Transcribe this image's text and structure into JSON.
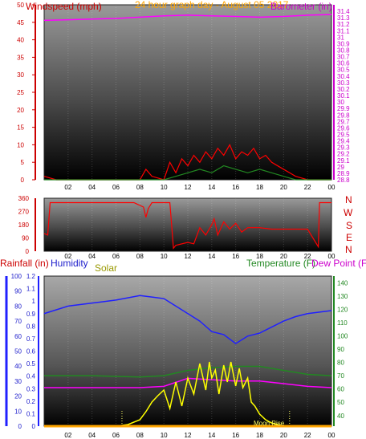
{
  "chart_data": [
    {
      "type": "line",
      "title": "24 hour graph day - August 05 2017",
      "ylabel": "Windspeed (mph)",
      "y2label": "Barometer (in)",
      "ylim": [
        0,
        50
      ],
      "y2lim": [
        28.8,
        31.5
      ],
      "yticks": [
        "0",
        "5",
        "10",
        "15",
        "20",
        "25",
        "30",
        "35",
        "40",
        "45",
        "50"
      ],
      "y2ticks": [
        "28.8",
        "28.9",
        "29",
        "29.1",
        "29.2",
        "29.3",
        "29.4",
        "29.5",
        "29.6",
        "29.7",
        "29.8",
        "29.9",
        "30",
        "30.1",
        "30.2",
        "30.3",
        "30.4",
        "30.5",
        "30.6",
        "30.7",
        "30.8",
        "30.9",
        "31",
        "31.1",
        "31.2",
        "31.3",
        "31.4"
      ],
      "xticks": [
        "02",
        "04",
        "06",
        "08",
        "10",
        "12",
        "14",
        "16",
        "18",
        "20",
        "22",
        "00"
      ],
      "series": [
        {
          "name": "Windspeed (mph)",
          "color": "#ff0000",
          "axis": "left",
          "x": [
            0,
            1,
            2,
            3,
            4,
            5,
            6,
            7,
            8,
            8.5,
            9,
            10,
            10.5,
            11,
            11.5,
            12,
            12.5,
            13,
            13.5,
            14,
            14.5,
            15,
            15.5,
            16,
            16.5,
            17,
            17.5,
            18,
            18.5,
            19,
            19.5,
            20,
            20.5,
            21,
            22,
            23,
            24
          ],
          "y": [
            1,
            0,
            0,
            0,
            0,
            0,
            0,
            0,
            0,
            3,
            1,
            0,
            5,
            2,
            6,
            4,
            7,
            5,
            8,
            6,
            9,
            7,
            10,
            6,
            8,
            7,
            9,
            6,
            7,
            5,
            4,
            3,
            2,
            1,
            0,
            0,
            0
          ]
        },
        {
          "name": "Wind Gust",
          "color": "#228822",
          "axis": "left",
          "x": [
            0,
            10,
            11,
            12,
            13,
            14,
            15,
            16,
            17,
            18,
            19,
            20,
            21,
            24
          ],
          "y": [
            0,
            0,
            1,
            2,
            3,
            2,
            4,
            3,
            2,
            3,
            2,
            1,
            0,
            0
          ]
        },
        {
          "name": "Barometer (in)",
          "color": "#ff00ff",
          "axis": "right",
          "x": [
            0,
            2,
            4,
            6,
            8,
            10,
            12,
            14,
            16,
            18,
            20,
            22,
            24
          ],
          "y": [
            31.26,
            31.27,
            31.28,
            31.29,
            31.31,
            31.33,
            31.34,
            31.33,
            31.32,
            31.31,
            31.32,
            31.34,
            31.35
          ]
        }
      ]
    },
    {
      "type": "line",
      "ylabel": "Wind Direction",
      "ylim": [
        0,
        360
      ],
      "yticks": [
        "0",
        "90",
        "180",
        "270",
        "360"
      ],
      "compass": [
        "N",
        "W",
        "S",
        "E",
        "N"
      ],
      "xticks": [
        "02",
        "04",
        "06",
        "08",
        "10",
        "12",
        "14",
        "16",
        "18",
        "20",
        "22",
        "00"
      ],
      "series": [
        {
          "name": "Wind Direction",
          "color": "#ff0000",
          "x": [
            0,
            0.3,
            0.5,
            1,
            2,
            4,
            6,
            7.5,
            8.3,
            8.5,
            8.7,
            9,
            10,
            10.5,
            10.8,
            11,
            12,
            12.5,
            13,
            13.5,
            14,
            14.2,
            14.5,
            15,
            15.5,
            16,
            16.5,
            17,
            18,
            19,
            20,
            21,
            22,
            22.9,
            23,
            24
          ],
          "y": [
            120,
            110,
            330,
            330,
            330,
            330,
            330,
            330,
            300,
            230,
            290,
            330,
            330,
            330,
            20,
            40,
            60,
            50,
            160,
            110,
            180,
            220,
            110,
            200,
            150,
            190,
            130,
            160,
            160,
            150,
            150,
            150,
            150,
            30,
            330,
            330
          ]
        }
      ]
    },
    {
      "type": "line",
      "ylabel": "Rainfall (in)",
      "y2label": "Humidity",
      "y3label": "Solar",
      "y4label": "Temperature (F)",
      "y5label": "Dew Point (F)",
      "rain_ticks": [
        "0",
        "0.1",
        "0.2",
        "0.3",
        "0.4",
        "0.5",
        "0.6",
        "0.7",
        "0.8",
        "0.9",
        "1",
        "1.1",
        "1.2"
      ],
      "humidity_ticks": [
        "0",
        "10",
        "20",
        "30",
        "40",
        "50",
        "60",
        "70",
        "80",
        "90",
        "100"
      ],
      "temp_ticks": [
        "40",
        "50",
        "60",
        "70",
        "80",
        "90",
        "100",
        "110",
        "120",
        "130",
        "140"
      ],
      "temp_lim": [
        32,
        145
      ],
      "xticks": [
        "02",
        "04",
        "06",
        "08",
        "10",
        "12",
        "14",
        "16",
        "18",
        "20",
        "22",
        "00"
      ],
      "annotations": [
        "Moon Rise"
      ],
      "series": [
        {
          "name": "Humidity",
          "color": "#2020ff",
          "axis": "humidity",
          "x": [
            0,
            2,
            4,
            6,
            8,
            9,
            10,
            11,
            12,
            13,
            14,
            15,
            16,
            17,
            18,
            19,
            20,
            21,
            22,
            23,
            24
          ],
          "y": [
            75,
            80,
            82,
            84,
            87,
            86,
            85,
            80,
            75,
            70,
            63,
            61,
            55,
            60,
            62,
            66,
            70,
            73,
            75,
            76,
            77
          ]
        },
        {
          "name": "Temperature (F)",
          "color": "#228822",
          "axis": "temp",
          "x": [
            0,
            4,
            8,
            10,
            12,
            14,
            16,
            18,
            20,
            22,
            24
          ],
          "y": [
            70,
            70,
            69,
            70,
            74,
            76,
            77,
            77,
            74,
            71,
            70
          ]
        },
        {
          "name": "Dew Point (F)",
          "color": "#ff00ff",
          "axis": "temp",
          "x": [
            0,
            4,
            8,
            10,
            12,
            14,
            16,
            18,
            20,
            22,
            24
          ],
          "y": [
            61,
            61,
            61,
            62,
            68,
            67,
            66,
            66,
            64,
            62,
            61
          ]
        },
        {
          "name": "Solar",
          "color": "#ffff00",
          "axis": "solar_px",
          "x": [
            0,
            6,
            7,
            8,
            8.5,
            9,
            9.5,
            10,
            10.5,
            11,
            11.5,
            12,
            12.5,
            13,
            13.5,
            13.8,
            14,
            14.3,
            14.6,
            15,
            15.3,
            15.6,
            16,
            16.3,
            16.6,
            17,
            17.3,
            17.6,
            18,
            18.5,
            19,
            20,
            24
          ],
          "y": [
            0,
            0,
            2,
            8,
            18,
            30,
            38,
            45,
            22,
            55,
            25,
            60,
            40,
            78,
            45,
            80,
            60,
            70,
            40,
            76,
            55,
            80,
            50,
            72,
            48,
            60,
            30,
            25,
            15,
            8,
            4,
            0,
            0
          ]
        },
        {
          "name": "Rainfall (in)",
          "color": "#ffa500",
          "axis": "rain",
          "x": [
            0,
            24
          ],
          "y": [
            0,
            0
          ]
        }
      ]
    }
  ]
}
